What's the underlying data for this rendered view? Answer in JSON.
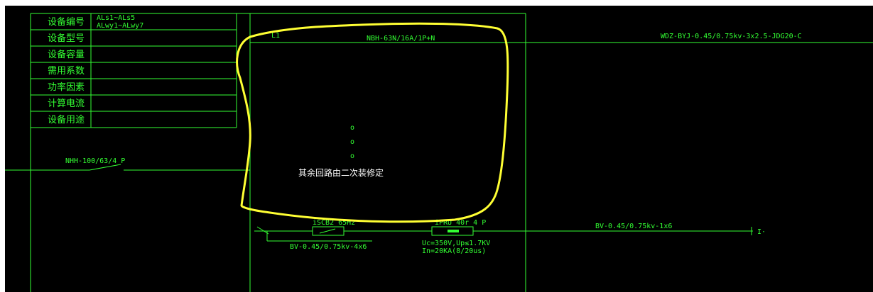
{
  "colors": {
    "background": "#000000",
    "line": "#33ff33",
    "annotation": "#ffff33",
    "note_text": "#ffffff"
  },
  "table": {
    "rows": [
      {
        "label": "设备编号",
        "value_lines": [
          "ALs1~ALs5",
          "ALwy1~ALwy7"
        ]
      },
      {
        "label": "设备型号",
        "value_lines": []
      },
      {
        "label": "设备容量",
        "value_lines": []
      },
      {
        "label": "需用系数",
        "value_lines": []
      },
      {
        "label": "功率因素",
        "value_lines": []
      },
      {
        "label": "计算电流",
        "value_lines": []
      },
      {
        "label": "设备用途",
        "value_lines": []
      }
    ]
  },
  "main_switch": {
    "label": "NHH-100/63/4 P"
  },
  "branch_circuit": {
    "id": "L1",
    "breaker": "NBH-63N/16A/1P+N",
    "cable": "WDZ-BYJ-0.45/0.75kv-3x2.5-JDG20-C"
  },
  "note": {
    "text": "其余回路由二次装修定",
    "dots": [
      "o",
      "o",
      "o"
    ]
  },
  "spd_circuit": {
    "breaker": "iSCB2 65Hz",
    "breaker_cable": "BV-0.45/0.75kv-4x6",
    "spd": "iPRU 40r 4 P",
    "spd_specs": [
      "Uc=350V,Up≤1.7KV",
      "In=20KA(8/20us)"
    ],
    "ground_cable": "BV-0.45/0.75kv-1x6",
    "ground_end": "I·"
  }
}
